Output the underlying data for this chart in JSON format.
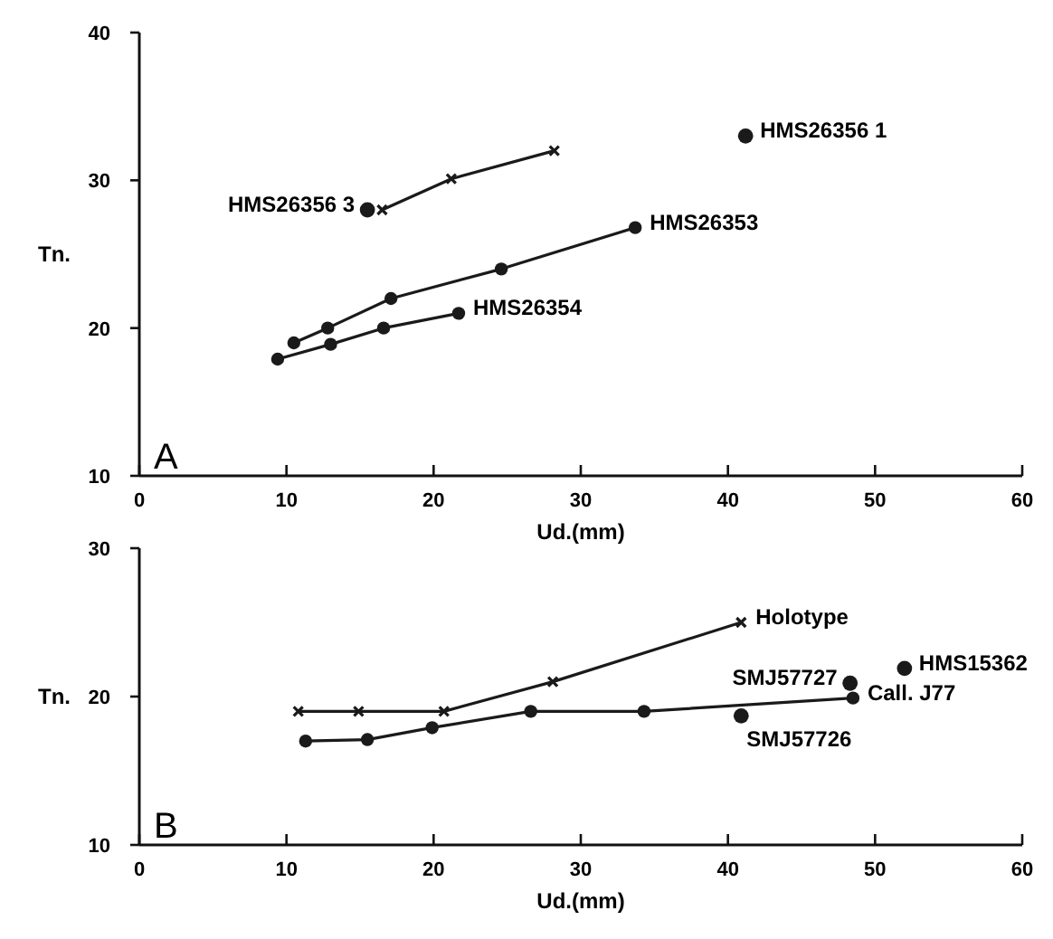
{
  "chart_data": [
    {
      "type": "line",
      "xlabel": "Ud.(mm)",
      "ylabel": "Tn.",
      "xlim": [
        0,
        60
      ],
      "xticks": [
        0,
        10,
        20,
        30,
        40,
        50,
        60
      ],
      "ylim": [
        10,
        40
      ],
      "yticks": [
        10,
        20,
        30,
        40
      ],
      "grid": false,
      "legend": false,
      "annotations": [
        "A"
      ],
      "series": [
        {
          "color": "#1a1a1a",
          "marker": "cross",
          "x": [
            16.5,
            21.2,
            28.2
          ],
          "values": [
            28,
            30.1,
            32
          ]
        },
        {
          "name": "HMS26356 3",
          "type": "scatter",
          "color": "#1a1a1a",
          "marker": "circle",
          "x": [
            15.5
          ],
          "values": [
            28
          ]
        },
        {
          "name": "HMS26356 1",
          "type": "scatter",
          "color": "#1a1a1a",
          "marker": "circle",
          "x": [
            41.2
          ],
          "values": [
            33
          ]
        },
        {
          "name": "HMS26353",
          "color": "#1a1a1a",
          "marker": "circle",
          "x": [
            10.5,
            12.8,
            17.1,
            24.6,
            33.7
          ],
          "values": [
            19,
            20,
            22,
            24,
            26.8
          ]
        },
        {
          "name": "HMS26354",
          "color": "#1a1a1a",
          "marker": "circle",
          "x": [
            9.4,
            13,
            16.6,
            21.7
          ],
          "values": [
            17.9,
            18.9,
            20,
            21
          ]
        }
      ]
    },
    {
      "type": "line",
      "xlabel": "Ud.(mm)",
      "ylabel": "Tn.",
      "xlim": [
        0,
        60
      ],
      "xticks": [
        0,
        10,
        20,
        30,
        40,
        50,
        60
      ],
      "ylim": [
        10,
        30
      ],
      "yticks": [
        10,
        20,
        30
      ],
      "grid": false,
      "legend": false,
      "annotations": [
        "B"
      ],
      "series": [
        {
          "name": "Holotype",
          "color": "#1a1a1a",
          "marker": "cross",
          "x": [
            10.8,
            14.9,
            20.7,
            28.1,
            40.9
          ],
          "values": [
            19,
            19,
            19,
            21,
            25
          ]
        },
        {
          "name": "SMJ57727",
          "type": "scatter",
          "color": "#1a1a1a",
          "marker": "circle",
          "x": [
            48.3
          ],
          "values": [
            20.9
          ]
        },
        {
          "name": "HMS15362",
          "type": "scatter",
          "color": "#1a1a1a",
          "marker": "circle",
          "x": [
            52
          ],
          "values": [
            21.9
          ]
        },
        {
          "name": "Call. J77",
          "color": "#1a1a1a",
          "marker": "circle",
          "x": [
            11.3,
            15.5,
            19.9,
            26.6,
            34.3,
            48.5
          ],
          "values": [
            17,
            17.1,
            17.9,
            19,
            19,
            19.9
          ]
        },
        {
          "name": "SMJ57726",
          "type": "scatter",
          "color": "#1a1a1a",
          "marker": "circle",
          "x": [
            40.9
          ],
          "values": [
            18.7
          ]
        }
      ]
    }
  ]
}
